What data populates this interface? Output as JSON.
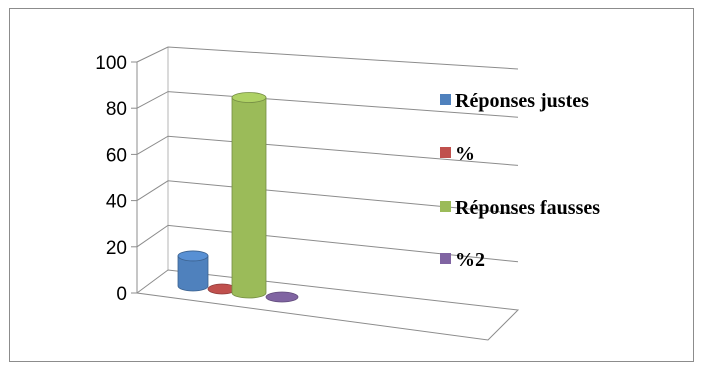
{
  "chart_data": {
    "type": "bar",
    "style": "3d-cylinder",
    "categories": [
      ""
    ],
    "series": [
      {
        "name": "Réponses justes",
        "values": [
          14
        ],
        "color": "#4F81BD"
      },
      {
        "name": "%",
        "values": [
          0
        ],
        "color": "#C0504D"
      },
      {
        "name": "Réponses fausses",
        "values": [
          91
        ],
        "color": "#9BBB59"
      },
      {
        "name": "%2",
        "values": [
          0
        ],
        "color": "#8064A2"
      }
    ],
    "yticks": [
      "0",
      "20",
      "40",
      "60",
      "80",
      "100"
    ],
    "ylim": [
      0,
      100
    ],
    "grid": true,
    "legend": "right"
  }
}
